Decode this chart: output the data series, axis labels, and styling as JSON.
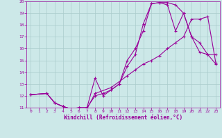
{
  "title": "",
  "xlabel": "Windchill (Refroidissement éolien,°C)",
  "ylabel": "",
  "bg_color": "#cce8e8",
  "line_color": "#990099",
  "grid_color": "#aacccc",
  "xlim": [
    -0.5,
    23.5
  ],
  "ylim": [
    11,
    20
  ],
  "xticks": [
    0,
    1,
    2,
    3,
    4,
    5,
    6,
    7,
    8,
    9,
    10,
    11,
    12,
    13,
    14,
    15,
    16,
    17,
    18,
    19,
    20,
    21,
    22,
    23
  ],
  "yticks": [
    11,
    12,
    13,
    14,
    15,
    16,
    17,
    18,
    19,
    20
  ],
  "line1_x": [
    0,
    2,
    3,
    4,
    5,
    6,
    7,
    8,
    9,
    10,
    11,
    12,
    13,
    14,
    15,
    16,
    17,
    18,
    19,
    20,
    21,
    22,
    23
  ],
  "line1_y": [
    12.1,
    12.2,
    11.4,
    11.1,
    10.9,
    11.0,
    11.0,
    13.5,
    12.0,
    12.5,
    13.0,
    14.5,
    15.5,
    18.1,
    19.8,
    19.9,
    19.9,
    19.7,
    19.0,
    17.0,
    15.7,
    15.5,
    14.7
  ],
  "line2_x": [
    0,
    2,
    3,
    4,
    5,
    6,
    7,
    8,
    9,
    10,
    11,
    12,
    13,
    14,
    15,
    16,
    17,
    18,
    19,
    20,
    21,
    22,
    23
  ],
  "line2_y": [
    12.1,
    12.2,
    11.4,
    11.1,
    10.9,
    11.0,
    11.0,
    12.0,
    12.2,
    12.5,
    13.0,
    15.0,
    16.0,
    17.5,
    19.8,
    19.9,
    19.7,
    17.5,
    19.0,
    17.0,
    16.5,
    15.5,
    15.5
  ],
  "line3_x": [
    0,
    2,
    3,
    4,
    5,
    6,
    7,
    8,
    10,
    12,
    13,
    14,
    15,
    16,
    17,
    18,
    19,
    20,
    21,
    22,
    23
  ],
  "line3_y": [
    12.1,
    12.2,
    11.4,
    11.1,
    10.9,
    10.9,
    10.9,
    12.2,
    12.7,
    13.7,
    14.2,
    14.7,
    15.0,
    15.4,
    16.0,
    16.5,
    17.0,
    18.5,
    18.5,
    18.7,
    14.8
  ]
}
